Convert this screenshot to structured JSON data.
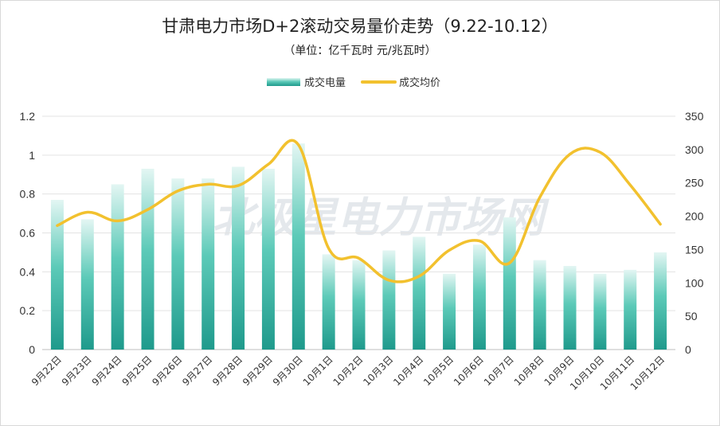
{
  "chart_data": {
    "type": "bar+line",
    "title": "甘肃电力市场D+2滚动交易量价走势（9.22-10.12）",
    "subtitle": "（单位：亿千瓦时 元/兆瓦时）",
    "watermark": "北极星电力市场网",
    "categories": [
      "9月22日",
      "9月23日",
      "9月24日",
      "9月25日",
      "9月26日",
      "9月27日",
      "9月28日",
      "9月29日",
      "9月30日",
      "10月1日",
      "10月2日",
      "10月3日",
      "10月4日",
      "10月5日",
      "10月6日",
      "10月7日",
      "10月8日",
      "10月9日",
      "10月10日",
      "10月11日",
      "10月12日"
    ],
    "series": [
      {
        "name": "成交电量",
        "type": "bar",
        "axis": "left",
        "color": "#2aa79a",
        "values": [
          0.77,
          0.67,
          0.85,
          0.93,
          0.88,
          0.88,
          0.94,
          0.93,
          1.06,
          0.49,
          0.46,
          0.51,
          0.58,
          0.39,
          0.54,
          0.68,
          0.46,
          0.43,
          0.39,
          0.41,
          0.5
        ]
      },
      {
        "name": "成交均价",
        "type": "line",
        "axis": "right",
        "color": "#f2c12e",
        "values": [
          186,
          206,
          193,
          210,
          238,
          248,
          246,
          278,
          307,
          152,
          137,
          104,
          110,
          149,
          163,
          130,
          228,
          293,
          296,
          247,
          188
        ]
      }
    ],
    "y_left": {
      "min": 0,
      "max": 1.2,
      "ticks": [
        "0",
        "0.2",
        "0.4",
        "0.6",
        "0.8",
        "1",
        "1.2"
      ]
    },
    "y_right": {
      "min": 0,
      "max": 350,
      "ticks": [
        "0",
        "50",
        "100",
        "150",
        "200",
        "250",
        "300",
        "350"
      ]
    },
    "grid": true,
    "legend_position": "top-center"
  }
}
